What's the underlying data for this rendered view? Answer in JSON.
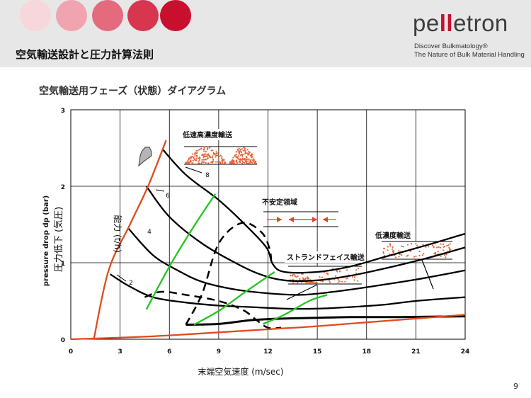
{
  "header": {
    "title": "空気輸送設計と圧力計算法則",
    "dot_colors": [
      "#f7d7dc",
      "#f0a4b0",
      "#e46a7e",
      "#d8354f",
      "#c8102e"
    ]
  },
  "brand": {
    "logo_text": "pelletron",
    "tagline_line1": "Discover Bulkmatology®",
    "tagline_line2": "The Nature of Bulk Material Handling"
  },
  "slide": {
    "subtitle": "空気輸送用フェーズ（状態）ダイアグラム",
    "page_number": "9"
  },
  "chart_data": {
    "type": "line",
    "xlabel": "末端空気速度 (m/sec)",
    "ylabel_jp": "圧力低下 (気圧)",
    "ylabel_en": "pressure drop dp (bar)",
    "x_ticks": [
      "0",
      "3",
      "6",
      "9",
      "12",
      "15",
      "18",
      "21",
      "24"
    ],
    "y_ticks": [
      "0",
      "1",
      "2",
      "3"
    ],
    "xlim": [
      0,
      24
    ],
    "ylim": [
      0,
      3
    ],
    "grid": true,
    "capacity_label": "能力 (t/h)",
    "capacity_values": [
      "2",
      "4",
      "6",
      "8"
    ],
    "regions": {
      "dense_low_speed": "低速高濃度輸送",
      "unstable": "不安定領域",
      "strand": "ストランドフェイス輸送",
      "dilute": "低濃度輸送"
    },
    "colors": {
      "curve": "#000000",
      "red": "#e04a1e",
      "green": "#22c51e",
      "dots": "#e8663a"
    },
    "series": [
      {
        "name": "2",
        "points": [
          [
            2.4,
            0.85
          ],
          [
            3.5,
            0.7
          ],
          [
            5,
            0.55
          ],
          [
            7,
            0.48
          ],
          [
            9,
            0.44
          ],
          [
            11,
            0.42
          ],
          [
            13,
            0.4
          ],
          [
            15,
            0.4
          ],
          [
            17,
            0.42
          ],
          [
            19,
            0.45
          ],
          [
            21,
            0.5
          ],
          [
            24,
            0.55
          ]
        ]
      },
      {
        "name": "4",
        "points": [
          [
            3.5,
            1.45
          ],
          [
            5,
            1.1
          ],
          [
            6.5,
            0.9
          ],
          [
            8,
            0.75
          ],
          [
            10,
            0.65
          ],
          [
            12,
            0.6
          ],
          [
            14,
            0.58
          ],
          [
            16,
            0.62
          ],
          [
            18,
            0.68
          ],
          [
            21,
            0.78
          ],
          [
            24,
            0.9
          ]
        ]
      },
      {
        "name": "6",
        "points": [
          [
            4.6,
            2.0
          ],
          [
            6,
            1.6
          ],
          [
            8,
            1.25
          ],
          [
            10,
            1.0
          ],
          [
            11.5,
            0.85
          ],
          [
            13,
            0.77
          ],
          [
            15,
            0.77
          ],
          [
            17,
            0.83
          ],
          [
            19,
            0.92
          ],
          [
            21.5,
            1.05
          ],
          [
            24,
            1.2
          ]
        ]
      },
      {
        "name": "8",
        "points": [
          [
            5.6,
            2.48
          ],
          [
            7,
            2.15
          ],
          [
            9,
            1.82
          ],
          [
            10.6,
            1.5
          ],
          [
            11.9,
            1.2
          ],
          [
            12.3,
            0.98
          ],
          [
            13,
            0.88
          ],
          [
            15,
            0.88
          ],
          [
            17,
            0.95
          ],
          [
            19,
            1.07
          ],
          [
            21.5,
            1.22
          ],
          [
            24,
            1.38
          ]
        ]
      },
      {
        "name": "saltation",
        "points": [
          [
            4.5,
            0.55
          ],
          [
            5.5,
            0.62
          ],
          [
            7,
            0.58
          ],
          [
            9,
            0.5
          ],
          [
            10.5,
            0.38
          ],
          [
            11.3,
            0.25
          ],
          [
            12,
            0.15
          ],
          [
            12.8,
            0.15
          ]
        ]
      },
      {
        "name": "minimum",
        "points": [
          [
            7,
            0.19
          ],
          [
            9,
            0.2
          ],
          [
            11,
            0.25
          ],
          [
            13,
            0.27
          ],
          [
            15,
            0.28
          ],
          [
            17,
            0.29
          ],
          [
            20,
            0.29
          ],
          [
            24,
            0.3
          ]
        ]
      },
      {
        "name": "dense_boundary",
        "points": [
          [
            7,
            0.19
          ],
          [
            8,
            0.6
          ],
          [
            9,
            1.25
          ],
          [
            10.4,
            1.52
          ],
          [
            11.6,
            1.4
          ],
          [
            12.1,
            1.18
          ],
          [
            12.2,
            1.0
          ]
        ]
      },
      {
        "name": "red_left",
        "points": [
          [
            1.4,
            0.0
          ],
          [
            2.3,
            0.9
          ],
          [
            3.6,
            1.5
          ],
          [
            4.7,
            2.0
          ],
          [
            5.8,
            2.6
          ]
        ]
      },
      {
        "name": "red_bottom",
        "points": [
          [
            0,
            0.0
          ],
          [
            3,
            0.02
          ],
          [
            6,
            0.05
          ],
          [
            9,
            0.09
          ],
          [
            12,
            0.13
          ],
          [
            15,
            0.17
          ],
          [
            18,
            0.22
          ],
          [
            21,
            0.27
          ],
          [
            24,
            0.32
          ]
        ]
      },
      {
        "name": "green_1",
        "points": [
          [
            4.6,
            0.39
          ],
          [
            6,
            0.95
          ],
          [
            7.5,
            1.48
          ],
          [
            8.8,
            1.9
          ]
        ]
      },
      {
        "name": "green_2",
        "points": [
          [
            7.5,
            0.19
          ],
          [
            9,
            0.37
          ],
          [
            10.5,
            0.6
          ],
          [
            12.4,
            0.88
          ]
        ]
      },
      {
        "name": "green_3",
        "points": [
          [
            11.7,
            0.2
          ],
          [
            13,
            0.32
          ],
          [
            14.5,
            0.5
          ],
          [
            15.6,
            0.58
          ]
        ]
      }
    ]
  }
}
